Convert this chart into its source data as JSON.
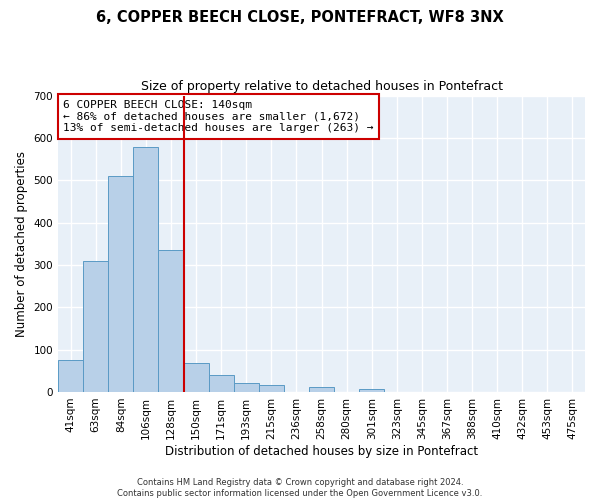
{
  "title": "6, COPPER BEECH CLOSE, PONTEFRACT, WF8 3NX",
  "subtitle": "Size of property relative to detached houses in Pontefract",
  "xlabel": "Distribution of detached houses by size in Pontefract",
  "ylabel": "Number of detached properties",
  "bar_labels": [
    "41sqm",
    "63sqm",
    "84sqm",
    "106sqm",
    "128sqm",
    "150sqm",
    "171sqm",
    "193sqm",
    "215sqm",
    "236sqm",
    "258sqm",
    "280sqm",
    "301sqm",
    "323sqm",
    "345sqm",
    "367sqm",
    "388sqm",
    "410sqm",
    "432sqm",
    "453sqm",
    "475sqm"
  ],
  "bar_values": [
    75,
    310,
    510,
    578,
    335,
    68,
    40,
    20,
    17,
    0,
    12,
    0,
    6,
    0,
    0,
    0,
    0,
    0,
    0,
    0,
    0
  ],
  "bar_color": "#b8d0e8",
  "bar_edge_color": "#5a9ac5",
  "vline_x": 4.5,
  "vline_color": "#cc0000",
  "ylim": [
    0,
    700
  ],
  "yticks": [
    0,
    100,
    200,
    300,
    400,
    500,
    600,
    700
  ],
  "annotation_text": "6 COPPER BEECH CLOSE: 140sqm\n← 86% of detached houses are smaller (1,672)\n13% of semi-detached houses are larger (263) →",
  "annotation_box_color": "#ffffff",
  "annotation_box_edge": "#cc0000",
  "footer_line1": "Contains HM Land Registry data © Crown copyright and database right 2024.",
  "footer_line2": "Contains public sector information licensed under the Open Government Licence v3.0.",
  "figure_bg_color": "#ffffff",
  "plot_bg_color": "#e8f0f8",
  "grid_color": "#ffffff",
  "title_fontsize": 10.5,
  "subtitle_fontsize": 9,
  "tick_fontsize": 7.5,
  "ylabel_fontsize": 8.5,
  "xlabel_fontsize": 8.5,
  "annotation_fontsize": 8,
  "footer_fontsize": 6
}
